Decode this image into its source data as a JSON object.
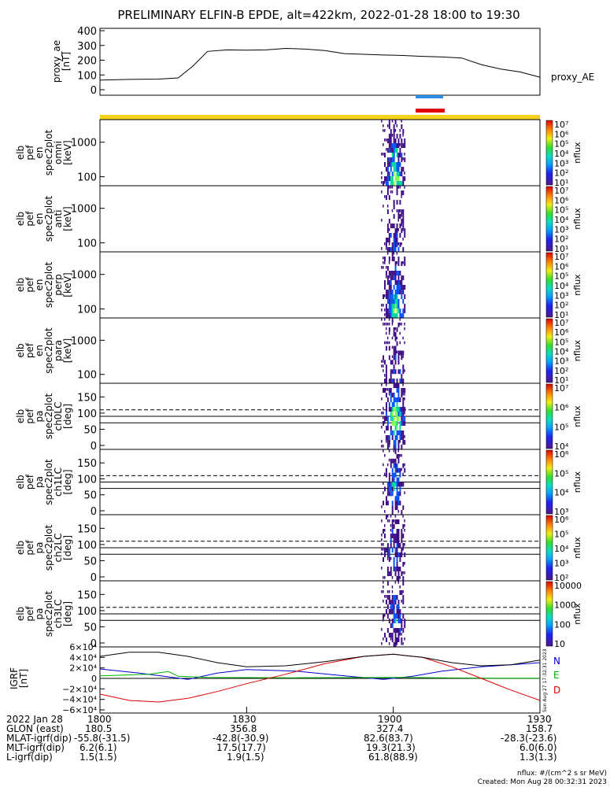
{
  "title": "PRELIMINARY ELFIN-B EPDE, alt=422km, 2022-01-28 18:00 to 19:30",
  "colors": {
    "flux_low": "#3c0a82",
    "flux_mid": "#0050ff",
    "flux_high": "#00d4a0",
    "flux_peak": "#7fff4f",
    "bar_yellow": "#f2d21a",
    "bar_red": "#e00000",
    "bar_blue": "#2a8fe0",
    "north": "#0000cc",
    "east": "#00b000",
    "down": "#dd0000"
  },
  "side_labels": {
    "proxy_ae": "proxy_AE",
    "nflux": "nflux",
    "N": "N",
    "E": "E",
    "D": "D",
    "vertical_stamp": "Sun Aug 27 17:32:31 2023"
  },
  "panels": {
    "ae": {
      "ylabel": [
        "proxy_ae",
        "[nT]"
      ],
      "ticks": [
        "0",
        "100",
        "200",
        "300",
        "400"
      ]
    },
    "en_omni": {
      "ylabel": [
        "elb",
        "pef",
        "en",
        "spec2plot",
        "omni",
        "[keV]"
      ],
      "ticks": [
        "100",
        "1000"
      ],
      "cb": [
        "10⁷",
        "10⁶",
        "10⁵",
        "10⁴",
        "10³",
        "10²",
        "10¹"
      ]
    },
    "en_anti": {
      "ylabel": [
        "elb",
        "pef",
        "en",
        "spec2plot",
        "anti",
        "[keV]"
      ],
      "ticks": [
        "100",
        "1000"
      ],
      "cb": [
        "10⁷",
        "10⁶",
        "10⁵",
        "10⁴",
        "10³",
        "10²",
        "10¹"
      ]
    },
    "en_perp": {
      "ylabel": [
        "elb",
        "pef",
        "en",
        "spec2plot",
        "perp",
        "[keV]"
      ],
      "ticks": [
        "100",
        "1000"
      ],
      "cb": [
        "10⁷",
        "10⁶",
        "10⁵",
        "10⁴",
        "10³",
        "10²",
        "10¹"
      ]
    },
    "en_para": {
      "ylabel": [
        "elb",
        "pef",
        "en",
        "spec2plot",
        "para",
        "[keV]"
      ],
      "ticks": [
        "100",
        "1000"
      ],
      "cb": [
        "10⁷",
        "10⁶",
        "10⁵",
        "10⁴",
        "10³",
        "10²",
        "10¹"
      ]
    },
    "pa_ch0": {
      "ylabel": [
        "elb",
        "pef",
        "pa",
        "spec2plot",
        "ch0LC",
        "[deg]"
      ],
      "ticks": [
        "0",
        "50",
        "100",
        "150"
      ],
      "cb": [
        "10⁷",
        "10⁶",
        "10⁵",
        "10⁴"
      ]
    },
    "pa_ch1": {
      "ylabel": [
        "elb",
        "pef",
        "pa",
        "spec2plot",
        "ch1LC",
        "[deg]"
      ],
      "ticks": [
        "0",
        "50",
        "100",
        "150"
      ],
      "cb": [
        "10⁶",
        "10⁵",
        "10⁴",
        "10³"
      ]
    },
    "pa_ch2": {
      "ylabel": [
        "elb",
        "pef",
        "pa",
        "spec2plot",
        "ch2LC",
        "[deg]"
      ],
      "ticks": [
        "0",
        "50",
        "100",
        "150"
      ],
      "cb": [
        "10⁶",
        "10⁵",
        "10⁴",
        "10³",
        "10²"
      ]
    },
    "pa_ch3": {
      "ylabel": [
        "elb",
        "pef",
        "pa",
        "spec2plot",
        "ch3LC",
        "[deg]"
      ],
      "ticks": [
        "0",
        "50",
        "100",
        "150"
      ],
      "cb": [
        "10000",
        "1000",
        "100",
        "10"
      ]
    },
    "igrf": {
      "ylabel": [
        "IGRF",
        "[nT]"
      ],
      "ticks": [
        "−6×10⁴",
        "−4×10⁴",
        "−2×10⁴",
        "0",
        "2×10⁴",
        "4×10⁴",
        "6×10⁴"
      ]
    }
  },
  "footer": {
    "rows": [
      {
        "label": "2022 Jan 28",
        "values": [
          "1800",
          "1830",
          "1900",
          "1930"
        ]
      },
      {
        "label": "GLON (east)",
        "values": [
          "180.5",
          "356.8",
          "327.4",
          "158.7"
        ]
      },
      {
        "label": "MLAT-igrf(dip)",
        "values": [
          "-55.8(-31.5)",
          "-42.8(-30.9)",
          "82.6(83.7)",
          "-28.3(-23.6)"
        ]
      },
      {
        "label": "MLT-igrf(dip)",
        "values": [
          "6.2(6.1)",
          "17.5(17.7)",
          "19.3(21.3)",
          "6.0(6.0)"
        ]
      },
      {
        "label": "L-igrf(dip)",
        "values": [
          "1.5(1.5)",
          "1.9(1.5)",
          "61.8(88.9)",
          "1.3(1.3)"
        ]
      }
    ],
    "units": "nflux: #/(cm^2 s sr MeV)",
    "created": "Created: Mon Aug 28 00:32:31 2023"
  },
  "chart_data": {
    "type": "line",
    "x_label_times": [
      "1800",
      "1830",
      "1900",
      "1930"
    ],
    "x_minutes": [
      0,
      30,
      60,
      90
    ],
    "proxy_ae": {
      "ylim": [
        0,
        400
      ],
      "x": [
        0,
        6,
        12,
        16,
        19,
        22,
        26,
        30,
        34,
        38,
        42,
        46,
        50,
        54,
        58,
        62,
        66,
        70,
        74,
        78,
        82,
        86,
        90
      ],
      "values": [
        65,
        70,
        72,
        80,
        160,
        260,
        270,
        268,
        270,
        280,
        275,
        265,
        245,
        240,
        235,
        232,
        226,
        222,
        215,
        170,
        140,
        120,
        85
      ]
    },
    "igrf": {
      "ylim": [
        -60000,
        60000
      ],
      "series": [
        {
          "name": "N",
          "x": [
            0,
            8,
            14,
            18,
            24,
            30,
            40,
            50,
            58,
            64,
            70,
            78,
            84,
            90
          ],
          "values": [
            18000,
            10000,
            3000,
            -2000,
            10000,
            17000,
            14000,
            5000,
            -2000,
            4000,
            14000,
            22000,
            26000,
            30000
          ]
        },
        {
          "name": "E",
          "x": [
            0,
            10,
            14,
            16,
            22,
            30,
            40,
            50,
            60,
            70,
            80,
            90
          ],
          "values": [
            5000,
            8000,
            13000,
            4000,
            2000,
            1500,
            1200,
            1500,
            2000,
            1000,
            500,
            500
          ]
        },
        {
          "name": "D",
          "x": [
            0,
            6,
            12,
            18,
            24,
            30,
            38,
            46,
            54,
            60,
            66,
            72,
            78,
            84,
            90
          ],
          "values": [
            -30000,
            -42000,
            -45000,
            -38000,
            -25000,
            -10000,
            8000,
            28000,
            42000,
            46000,
            40000,
            22000,
            0,
            -22000,
            -42000
          ]
        },
        {
          "name": "total",
          "x": [
            0,
            6,
            12,
            18,
            24,
            30,
            38,
            46,
            54,
            60,
            66,
            72,
            78,
            84,
            90
          ],
          "values": [
            42000,
            50000,
            50000,
            42000,
            30000,
            22000,
            24000,
            32000,
            42000,
            46000,
            40000,
            30000,
            24000,
            26000,
            35000
          ]
        }
      ]
    },
    "spectrogram_activity_window_minutes": [
      57.5,
      62.5
    ],
    "pa_dashed_line_deg": 110,
    "pa_solid_line_deg": [
      70,
      90
    ]
  }
}
